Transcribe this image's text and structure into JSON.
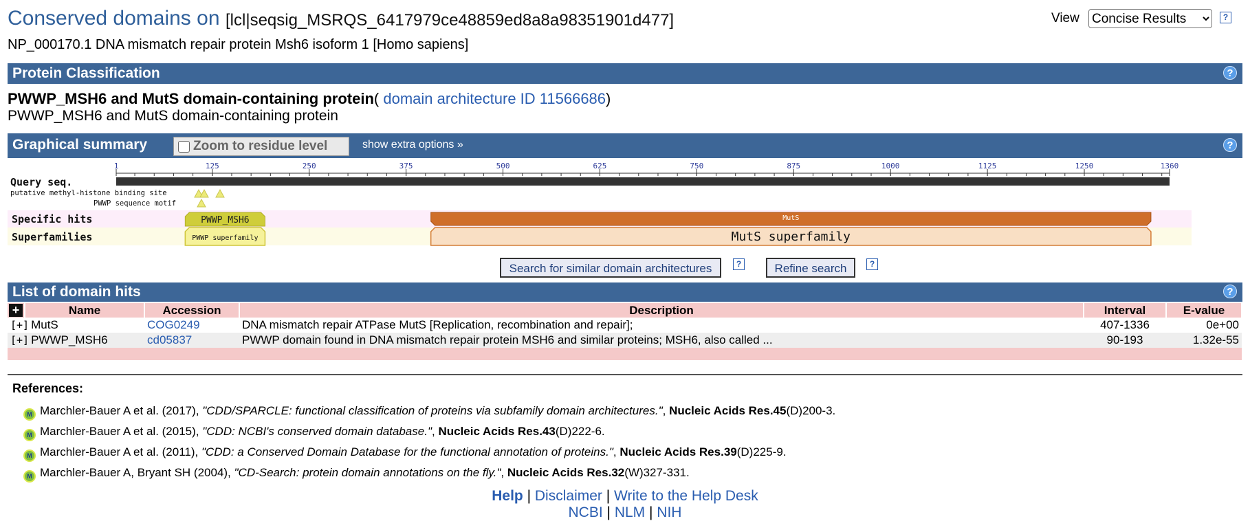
{
  "header": {
    "title": "Conserved domains on",
    "query_id": "[lcl|seqsig_MSRQS_6417979ce48859ed8a8a98351901d477]",
    "subtitle": "NP_000170.1 DNA mismatch repair protein Msh6 isoform 1 [Homo sapiens]",
    "view_label": "View",
    "view_selected": "Concise Results",
    "help_glyph": "?"
  },
  "protein_classification": {
    "bar_title": "Protein Classification",
    "name": "PWWP_MSH6 and MutS domain-containing protein",
    "open_paren": "( ",
    "link": "domain architecture ID 11566686",
    "close_paren": ")",
    "subtitle": "PWWP_MSH6 and MutS domain-containing protein"
  },
  "graphical_summary": {
    "bar_title": "Graphical summary",
    "zoom_label": "Zoom to residue level",
    "zoom_checked": false,
    "extra_options": "show extra options »",
    "query_label": "Query seq.",
    "sequence_length": 1360,
    "ruler_ticks": [
      {
        "value": 1,
        "label": "1"
      },
      {
        "value": 125,
        "label": "125"
      },
      {
        "value": 250,
        "label": "250"
      },
      {
        "value": 375,
        "label": "375"
      },
      {
        "value": 500,
        "label": "500"
      },
      {
        "value": 625,
        "label": "625"
      },
      {
        "value": 750,
        "label": "750"
      },
      {
        "value": 875,
        "label": "875"
      },
      {
        "value": 1000,
        "label": "1000"
      },
      {
        "value": 1125,
        "label": "1125"
      },
      {
        "value": 1250,
        "label": "1250"
      },
      {
        "value": 1360,
        "label": "1360"
      }
    ],
    "site_labels": {
      "methyl_histone": "putative methyl-histone binding site",
      "pwwp_motif": "PWWP sequence motif"
    },
    "row_labels": {
      "specific": "Specific hits",
      "superfamilies": "Superfamilies"
    },
    "specific_hits": [
      {
        "name": "PWWP_MSH6",
        "start": 90,
        "end": 193,
        "color": "#cfcd3a"
      },
      {
        "name": "MutS",
        "start": 407,
        "end": 1336,
        "color": "#cf6e2a"
      }
    ],
    "superfamilies": [
      {
        "name": "PWWP superfamily",
        "start": 90,
        "end": 193,
        "color": "#f6f29a"
      },
      {
        "name": "MutS superfamily",
        "start": 407,
        "end": 1336,
        "color": "#f9dfc4"
      }
    ],
    "btn_similar": "Search for similar domain architectures",
    "btn_refine": "Refine search"
  },
  "domain_hits": {
    "bar_title": "List of domain hits",
    "expand_all": "+",
    "columns": {
      "name": "Name",
      "accession": "Accession",
      "description": "Description",
      "interval": "Interval",
      "evalue": "E-value"
    },
    "expand_glyph": "[+]",
    "rows": [
      {
        "name": "MutS",
        "accession": "COG0249",
        "description": "DNA mismatch repair ATPase MutS [Replication, recombination and repair];",
        "interval": "407-1336",
        "evalue": "0e+00"
      },
      {
        "name": "PWWP_MSH6",
        "accession": "cd05837",
        "description": "PWWP domain found in DNA mismatch repair protein MSH6 and similar proteins; MSH6, also called ...",
        "interval": "90-193",
        "evalue": "1.32e-55"
      }
    ]
  },
  "references": {
    "heading": "References:",
    "icon_text": "M",
    "items": [
      {
        "authors": "Marchler-Bauer A et al. (2017), ",
        "title": "\"CDD/SPARCLE: functional classification of proteins via subfamily domain architectures.\"",
        "sep": ", ",
        "journal": "Nucleic Acids Res.45",
        "pages": "(D)200-3."
      },
      {
        "authors": "Marchler-Bauer A et al. (2015), ",
        "title": "\"CDD: NCBI's conserved domain database.\"",
        "sep": ", ",
        "journal": "Nucleic Acids Res.43",
        "pages": "(D)222-6."
      },
      {
        "authors": "Marchler-Bauer A et al. (2011), ",
        "title": "\"CDD: a Conserved Domain Database for the functional annotation of proteins.\"",
        "sep": ", ",
        "journal": "Nucleic Acids Res.39",
        "pages": "(D)225-9."
      },
      {
        "authors": "Marchler-Bauer A, Bryant SH (2004), ",
        "title": "\"CD-Search: protein domain annotations on the fly.\"",
        "sep": ", ",
        "journal": "Nucleic Acids Res.32",
        "pages": "(W)327-331."
      }
    ]
  },
  "footer": {
    "help": "Help",
    "disclaimer": "Disclaimer",
    "helpdesk": "Write to the Help Desk",
    "ncbi": "NCBI",
    "nlm": "NLM",
    "nih": "NIH",
    "separator": " | "
  }
}
